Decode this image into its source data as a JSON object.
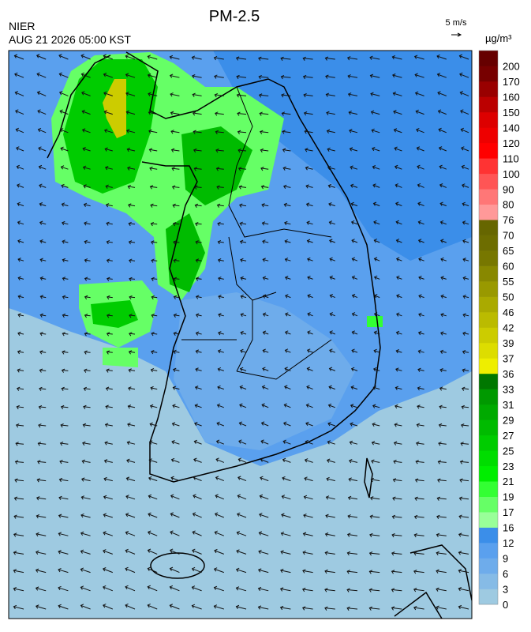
{
  "header": {
    "title": "PM-2.5",
    "agency": "NIER",
    "timestamp": "AUG 21 2026 05:00 KST"
  },
  "wind_scale": {
    "label": "5 m/s"
  },
  "legend": {
    "unit": "µg/m³",
    "labels": [
      0,
      3,
      6,
      9,
      12,
      16,
      17,
      19,
      21,
      23,
      25,
      27,
      29,
      31,
      33,
      36,
      37,
      39,
      42,
      46,
      50,
      55,
      60,
      65,
      70,
      76,
      80,
      90,
      100,
      110,
      120,
      140,
      150,
      160,
      170,
      200
    ],
    "colors": [
      "#9ecae1",
      "#86bbe6",
      "#6eaceb",
      "#5aa0ee",
      "#3b8ee9",
      "#99ff99",
      "#66ff66",
      "#33ff33",
      "#00ee00",
      "#00dd00",
      "#00cc00",
      "#00bb00",
      "#00aa00",
      "#009900",
      "#007700",
      "#eeee00",
      "#dddd00",
      "#cccc00",
      "#bbbb00",
      "#aaaa00",
      "#999900",
      "#888800",
      "#777700",
      "#6d6d00",
      "#666600",
      "#ff9999",
      "#ff7777",
      "#ff5555",
      "#ff3333",
      "#ff0000",
      "#ee0000",
      "#dd0000",
      "#bb0000",
      "#990000",
      "#770000",
      "#660000"
    ]
  }
}
